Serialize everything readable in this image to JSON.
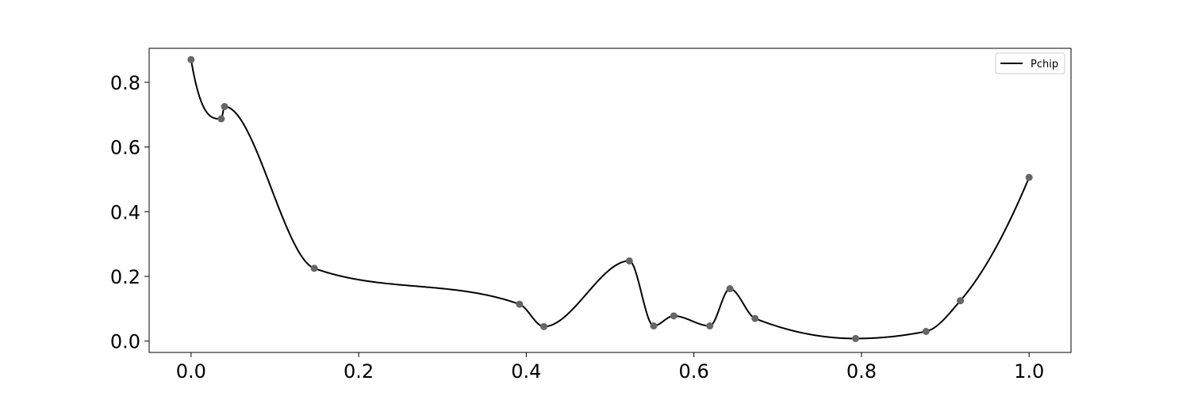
{
  "chart_data": {
    "type": "line",
    "title": "",
    "xlabel": "",
    "ylabel": "",
    "xlim": [
      -0.05,
      1.05
    ],
    "ylim": [
      -0.035,
      0.905
    ],
    "xticks": [
      0.0,
      0.2,
      0.4,
      0.6,
      0.8,
      1.0
    ],
    "xtick_labels": [
      "0.0",
      "0.2",
      "0.4",
      "0.6",
      "0.8",
      "1.0"
    ],
    "yticks": [
      0.0,
      0.2,
      0.4,
      0.6,
      0.8
    ],
    "ytick_labels": [
      "0.0",
      "0.2",
      "0.4",
      "0.6",
      "0.8"
    ],
    "grid": false,
    "legend": {
      "position": "top-right",
      "entries": [
        "Pchip"
      ]
    },
    "series": [
      {
        "name": "Pchip",
        "kind": "interpolated-line",
        "color": "#000000",
        "x": [
          0.0,
          0.036,
          0.04,
          0.147,
          0.392,
          0.421,
          0.523,
          0.552,
          0.576,
          0.619,
          0.643,
          0.673,
          0.793,
          0.877,
          0.918,
          1.0
        ],
        "y": [
          0.87,
          0.687,
          0.725,
          0.225,
          0.114,
          0.045,
          0.248,
          0.047,
          0.078,
          0.047,
          0.162,
          0.07,
          0.008,
          0.03,
          0.125,
          0.506
        ]
      },
      {
        "name": "data points",
        "kind": "markers",
        "color": "#666666",
        "x": [
          0.0,
          0.036,
          0.04,
          0.147,
          0.392,
          0.421,
          0.523,
          0.552,
          0.576,
          0.619,
          0.643,
          0.673,
          0.793,
          0.877,
          0.918,
          1.0
        ],
        "y": [
          0.87,
          0.687,
          0.725,
          0.225,
          0.114,
          0.045,
          0.248,
          0.047,
          0.078,
          0.047,
          0.162,
          0.07,
          0.008,
          0.03,
          0.125,
          0.506
        ]
      }
    ]
  }
}
